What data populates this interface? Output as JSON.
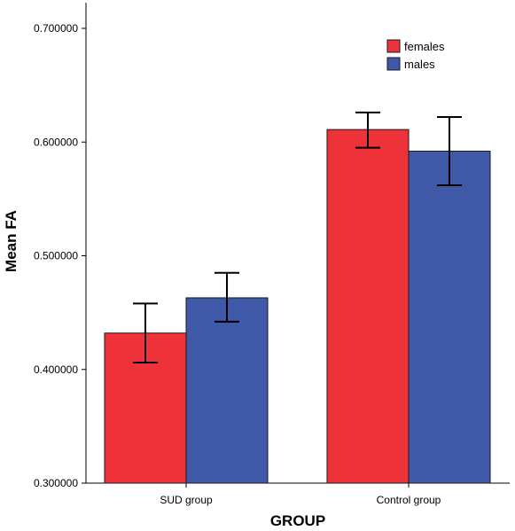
{
  "chart_data": {
    "type": "bar",
    "title": "",
    "xlabel": "GROUP",
    "ylabel": "Mean FA",
    "categories": [
      "SUD group",
      "Control group"
    ],
    "ylim": [
      0.3,
      0.7
    ],
    "yticks": [
      0.3,
      0.4,
      0.5,
      0.6,
      0.7
    ],
    "ytick_labels": [
      "0.300000",
      "0.400000",
      "0.500000",
      "0.600000",
      "0.700000"
    ],
    "error_bars": true,
    "grid": false,
    "legend_position": "top-right",
    "series": [
      {
        "name": "females",
        "color": "#ee3239",
        "values": [
          0.432,
          0.611
        ],
        "err_low": [
          0.406,
          0.595
        ],
        "err_high": [
          0.458,
          0.626
        ]
      },
      {
        "name": "males",
        "color": "#3f58a8",
        "values": [
          0.463,
          0.592
        ],
        "err_low": [
          0.442,
          0.562
        ],
        "err_high": [
          0.485,
          0.622
        ]
      }
    ]
  }
}
